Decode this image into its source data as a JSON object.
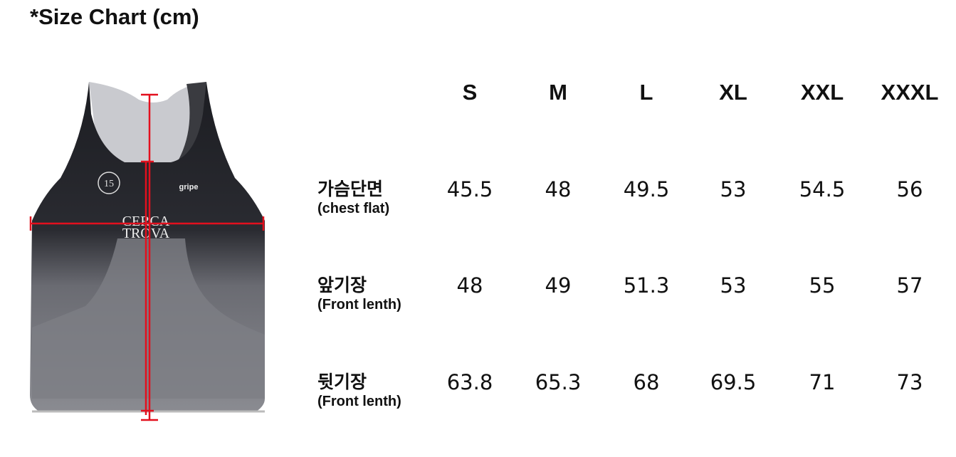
{
  "title": "*Size Chart (cm)",
  "sizes": [
    "S",
    "M",
    "L",
    "XL",
    "XXL",
    "XXXL"
  ],
  "rows": [
    {
      "label_ko": "가슴단면",
      "label_en": "(chest flat)",
      "values": [
        "45.5",
        "48",
        "49.5",
        "53",
        "54.5",
        "56"
      ]
    },
    {
      "label_ko": "앞기장",
      "label_en": "(Front lenth)",
      "values": [
        "48",
        "49",
        "51.3",
        "53",
        "55",
        "57"
      ]
    },
    {
      "label_ko": "뒷기장",
      "label_en": "(Front lenth)",
      "values": [
        "63.8",
        "65.3",
        "68",
        "69.5",
        "71",
        "73"
      ]
    }
  ],
  "garment_print": {
    "brand": "gripe",
    "slogan_line1": "CERCA",
    "slogan_line2": "TROVA",
    "badge": "15"
  },
  "colors": {
    "measure_line": "#e3101e"
  }
}
